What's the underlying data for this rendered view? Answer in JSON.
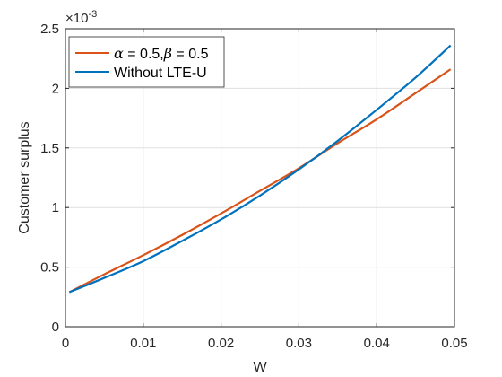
{
  "chart_data": {
    "type": "line",
    "title": "",
    "xlabel": "W",
    "ylabel": "Customer surplus",
    "y_exponent_label": "×10",
    "y_exponent_power": "-3",
    "xlim": [
      0,
      0.05
    ],
    "ylim": [
      0,
      2.5
    ],
    "xticks": [
      0,
      0.01,
      0.02,
      0.03,
      0.04,
      0.05
    ],
    "xtick_labels": [
      "0",
      "0.01",
      "0.02",
      "0.03",
      "0.04",
      "0.05"
    ],
    "yticks": [
      0,
      0.5,
      1,
      1.5,
      2,
      2.5
    ],
    "ytick_labels": [
      "0",
      "0.5",
      "1",
      "1.5",
      "2",
      "2.5"
    ],
    "grid": true,
    "legend_position": "top-left",
    "series": [
      {
        "name": "α = 0.5,β = 0.5",
        "name_parts": {
          "alpha": "α",
          "alpha_val": " = 0.5,",
          "beta": "β",
          "beta_val": " = 0.5"
        },
        "color": "#D95319",
        "x": [
          0.0005,
          0.005,
          0.01,
          0.015,
          0.02,
          0.025,
          0.03,
          0.035,
          0.04,
          0.045,
          0.0495
        ],
        "y": [
          0.29,
          0.44,
          0.6,
          0.77,
          0.95,
          1.14,
          1.33,
          1.54,
          1.74,
          1.96,
          2.16
        ]
      },
      {
        "name": "Without LTE-U",
        "color": "#0072BD",
        "x": [
          0.0005,
          0.005,
          0.01,
          0.015,
          0.02,
          0.025,
          0.03,
          0.035,
          0.04,
          0.045,
          0.0495
        ],
        "y": [
          0.29,
          0.41,
          0.55,
          0.72,
          0.9,
          1.1,
          1.32,
          1.56,
          1.82,
          2.09,
          2.36
        ]
      }
    ]
  }
}
